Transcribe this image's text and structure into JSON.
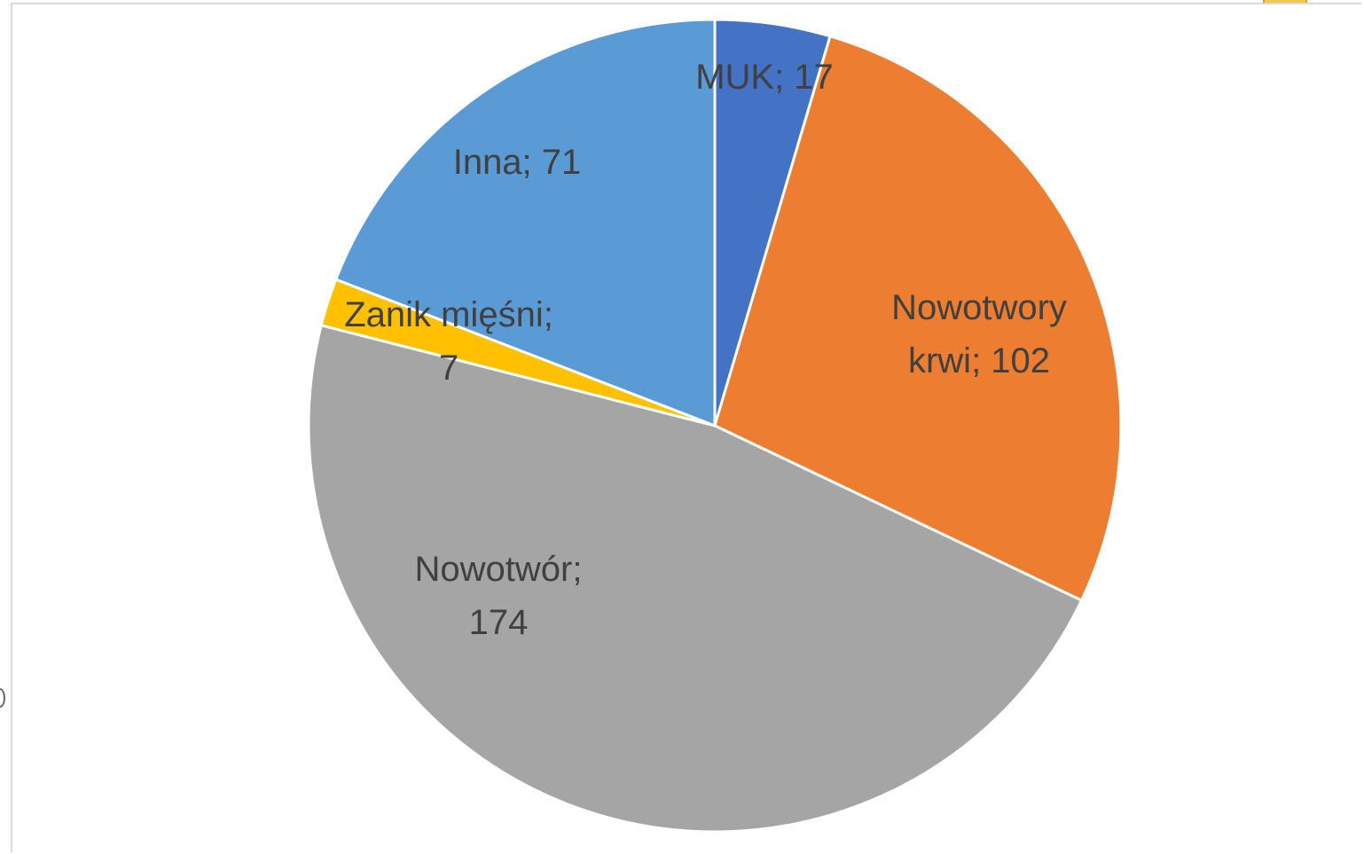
{
  "chart_data": {
    "type": "pie",
    "slices": [
      {
        "name": "MUK",
        "value": 17,
        "label": "MUK; 17",
        "color": "#4472C4"
      },
      {
        "name": "Nowotwory krwi",
        "value": 102,
        "label_lines": [
          "Nowotwory",
          "krwi; 102"
        ],
        "color": "#ED7D31"
      },
      {
        "name": "Nowotwór",
        "value": 174,
        "label_lines": [
          "Nowotwór;",
          "174"
        ],
        "color": "#A5A5A5"
      },
      {
        "name": "Zanik mięśni",
        "value": 7,
        "label_lines": [
          "Zanik mięśni;",
          "7"
        ],
        "color": "#FFC000"
      },
      {
        "name": "Inna",
        "value": 71,
        "label": "Inna; 71",
        "color": "#5B9BD5"
      }
    ],
    "start_angle_deg": 0,
    "direction": "clockwise",
    "data_labels": "category; value",
    "legend": "none"
  }
}
